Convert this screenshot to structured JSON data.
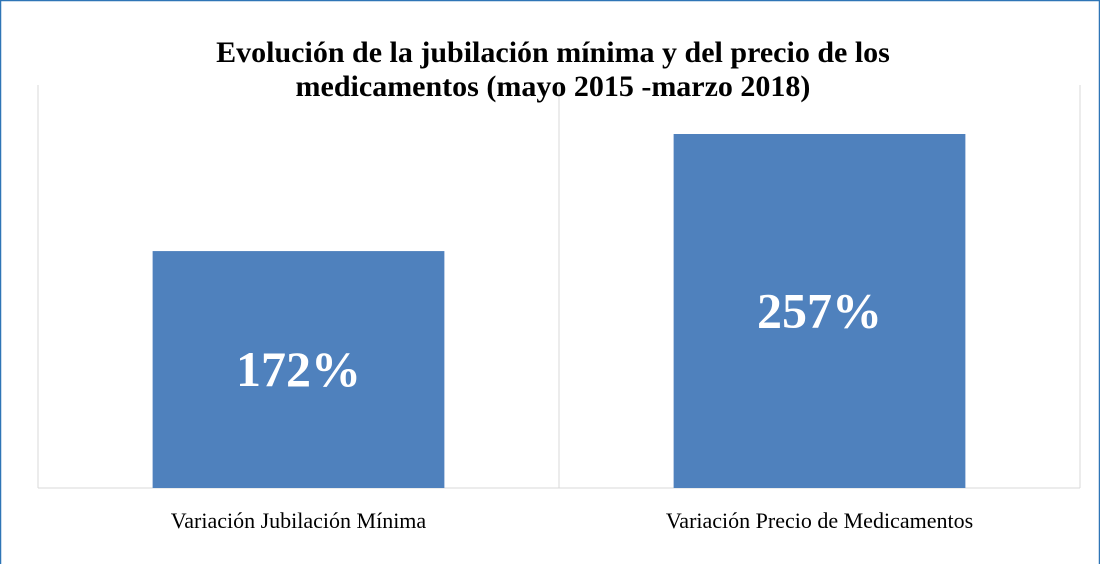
{
  "chart_data": {
    "type": "bar",
    "title": "Evolución de la jubilación mínima y del precio de los medicamentos (mayo 2015 -marzo 2018)",
    "categories": [
      "Variación Jubilación Mínima",
      "Variación Precio de Medicamentos"
    ],
    "values": [
      172,
      257
    ],
    "value_labels": [
      "172%",
      "257%"
    ],
    "color": "#4f81bd"
  }
}
